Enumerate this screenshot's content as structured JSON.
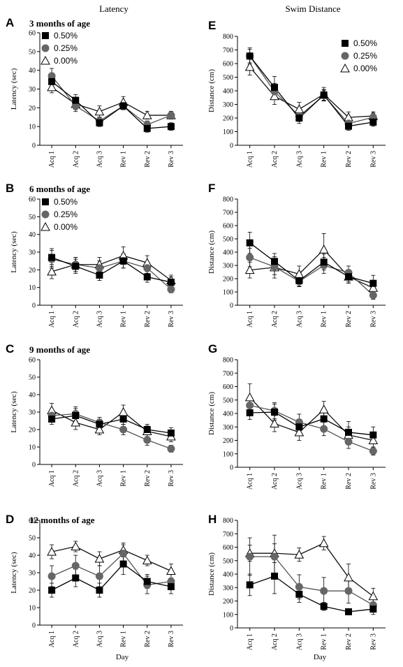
{
  "column_titles": [
    "Latency",
    "Swim Distance"
  ],
  "day_label": "Day",
  "chart_data": [
    {
      "type": "line",
      "panel": "A",
      "subtitle": "3 months of age",
      "ylabel": "Latency (sec)",
      "ylim": [
        0,
        60
      ],
      "yticks": [
        0,
        10,
        20,
        30,
        40,
        50,
        60
      ],
      "categories": [
        "Acq 1",
        "Acq 2",
        "Acq 3",
        "Rev 1",
        "Rev 2",
        "Rev 3"
      ],
      "legend": true,
      "legend_position": "top-left",
      "series": [
        {
          "name": "0.50%",
          "marker": "square",
          "values": [
            34,
            24,
            12,
            21,
            9,
            10
          ],
          "err": [
            3,
            3,
            2,
            2,
            2,
            2
          ]
        },
        {
          "name": "0.25%",
          "marker": "circle",
          "values": [
            37,
            21,
            13,
            21,
            11,
            16
          ],
          "err": [
            4,
            3,
            2,
            2,
            2,
            2
          ]
        },
        {
          "name": "0.00%",
          "marker": "triangle",
          "values": [
            31,
            22,
            18,
            23,
            16,
            16
          ],
          "err": [
            3,
            3,
            3,
            3,
            2,
            2
          ]
        }
      ]
    },
    {
      "type": "line",
      "panel": "E",
      "subtitle": "",
      "ylabel": "Distance (cm)",
      "ylim": [
        0,
        800
      ],
      "yticks": [
        0,
        100,
        200,
        300,
        400,
        500,
        600,
        700,
        800
      ],
      "categories": [
        "Acq 1",
        "Acq 2",
        "Acq 3",
        "Rev 1",
        "Rev 2",
        "Rev 3"
      ],
      "legend": true,
      "legend_position": "top-right",
      "series": [
        {
          "name": "0.50%",
          "marker": "square",
          "values": [
            655,
            425,
            200,
            370,
            140,
            170
          ],
          "err": [
            50,
            80,
            40,
            40,
            30,
            30
          ]
        },
        {
          "name": "0.25%",
          "marker": "circle",
          "values": [
            655,
            395,
            215,
            365,
            160,
            205
          ],
          "err": [
            60,
            60,
            40,
            40,
            30,
            30
          ]
        },
        {
          "name": "0.00%",
          "marker": "triangle",
          "values": [
            575,
            360,
            265,
            375,
            205,
            215
          ],
          "err": [
            60,
            60,
            50,
            50,
            40,
            30
          ]
        }
      ]
    },
    {
      "type": "line",
      "panel": "B",
      "subtitle": "6 months of age",
      "ylabel": "Latency (sec)",
      "ylim": [
        0,
        60
      ],
      "yticks": [
        0,
        10,
        20,
        30,
        40,
        50,
        60
      ],
      "categories": [
        "Acq 1",
        "Acq 2",
        "Acq 3",
        "Rev 1",
        "Rev 2",
        "Rev 3"
      ],
      "legend": true,
      "legend_position": "top-left",
      "series": [
        {
          "name": "0.50%",
          "marker": "square",
          "values": [
            27,
            22,
            17,
            25,
            16,
            13
          ],
          "err": [
            5,
            4,
            3,
            4,
            3,
            3
          ]
        },
        {
          "name": "0.25%",
          "marker": "circle",
          "values": [
            26,
            23,
            21,
            25,
            21,
            9
          ],
          "err": [
            5,
            4,
            4,
            4,
            3,
            2
          ]
        },
        {
          "name": "0.00%",
          "marker": "triangle",
          "values": [
            19,
            23,
            23,
            28,
            24,
            14
          ],
          "err": [
            4,
            4,
            4,
            5,
            4,
            3
          ]
        }
      ]
    },
    {
      "type": "line",
      "panel": "F",
      "subtitle": "",
      "ylabel": "Distance (cm)",
      "ylim": [
        0,
        800
      ],
      "yticks": [
        0,
        100,
        200,
        300,
        400,
        500,
        600,
        700,
        800
      ],
      "categories": [
        "Acq 1",
        "Acq 2",
        "Acq 3",
        "Rev 1",
        "Rev 2",
        "Rev 3"
      ],
      "legend": false,
      "legend_position": "",
      "series": [
        {
          "name": "0.50%",
          "marker": "square",
          "values": [
            470,
            330,
            185,
            325,
            215,
            165
          ],
          "err": [
            80,
            60,
            40,
            60,
            40,
            60
          ]
        },
        {
          "name": "0.25%",
          "marker": "circle",
          "values": [
            360,
            290,
            180,
            300,
            245,
            75
          ],
          "err": [
            70,
            60,
            40,
            60,
            50,
            30
          ]
        },
        {
          "name": "0.00%",
          "marker": "triangle",
          "values": [
            265,
            285,
            235,
            420,
            215,
            130
          ],
          "err": [
            60,
            80,
            60,
            120,
            50,
            40
          ]
        }
      ]
    },
    {
      "type": "line",
      "panel": "C",
      "subtitle": "9 months of age",
      "ylabel": "Latency (sec)",
      "ylim": [
        0,
        60
      ],
      "yticks": [
        0,
        10,
        20,
        30,
        40,
        50,
        60
      ],
      "categories": [
        "Acq 1",
        "Acq 2",
        "Acq 3",
        "Rev 1",
        "Rev 2",
        "Rev 3"
      ],
      "legend": false,
      "legend_position": "",
      "series": [
        {
          "name": "0.50%",
          "marker": "square",
          "values": [
            26,
            28,
            23,
            26,
            20,
            18
          ],
          "err": [
            3,
            4,
            3,
            3,
            3,
            3
          ]
        },
        {
          "name": "0.25%",
          "marker": "circle",
          "values": [
            28,
            29,
            24,
            20,
            14,
            9
          ],
          "err": [
            3,
            4,
            3,
            3,
            3,
            2
          ]
        },
        {
          "name": "0.00%",
          "marker": "triangle",
          "values": [
            31,
            24,
            20,
            30,
            19,
            16
          ],
          "err": [
            4,
            4,
            3,
            4,
            3,
            3
          ]
        }
      ]
    },
    {
      "type": "line",
      "panel": "G",
      "subtitle": "",
      "ylabel": "Distance (cm)",
      "ylim": [
        0,
        800
      ],
      "yticks": [
        0,
        100,
        200,
        300,
        400,
        500,
        600,
        700,
        800
      ],
      "categories": [
        "Acq 1",
        "Acq 2",
        "Acq 3",
        "Rev 1",
        "Rev 2",
        "Rev 3"
      ],
      "legend": false,
      "legend_position": "",
      "series": [
        {
          "name": "0.50%",
          "marker": "square",
          "values": [
            405,
            410,
            300,
            360,
            260,
            240
          ],
          "err": [
            50,
            60,
            50,
            60,
            80,
            60
          ]
        },
        {
          "name": "0.25%",
          "marker": "circle",
          "values": [
            460,
            420,
            335,
            285,
            190,
            120
          ],
          "err": [
            60,
            60,
            60,
            50,
            50,
            30
          ]
        },
        {
          "name": "0.00%",
          "marker": "triangle",
          "values": [
            520,
            325,
            260,
            430,
            240,
            200
          ],
          "err": [
            100,
            60,
            60,
            60,
            60,
            50
          ]
        }
      ]
    },
    {
      "type": "line",
      "panel": "D",
      "subtitle": "12 months of age",
      "ylabel": "Latency (sec)",
      "ylim": [
        0,
        60
      ],
      "yticks": [
        0,
        10,
        20,
        30,
        40,
        50,
        60
      ],
      "categories": [
        "Acq 1",
        "Acq 2",
        "Acq 3",
        "Rev 1",
        "Rev 2",
        "Rev 3"
      ],
      "legend": false,
      "legend_position": "",
      "series": [
        {
          "name": "0.50%",
          "marker": "square",
          "values": [
            20,
            27,
            20,
            35,
            25,
            22
          ],
          "err": [
            4,
            5,
            4,
            6,
            4,
            4
          ]
        },
        {
          "name": "0.25%",
          "marker": "circle",
          "values": [
            28,
            34,
            28,
            41,
            23,
            25
          ],
          "err": [
            6,
            6,
            6,
            5,
            5,
            4
          ]
        },
        {
          "name": "0.00%",
          "marker": "triangle",
          "values": [
            42,
            45,
            38,
            43,
            37,
            31
          ],
          "err": [
            4,
            3,
            4,
            4,
            3,
            4
          ]
        }
      ]
    },
    {
      "type": "line",
      "panel": "H",
      "subtitle": "",
      "ylabel": "Distance (cm)",
      "ylim": [
        0,
        800
      ],
      "yticks": [
        0,
        100,
        200,
        300,
        400,
        500,
        600,
        700,
        800
      ],
      "categories": [
        "Acq 1",
        "Acq 2",
        "Acq 3",
        "Rev 1",
        "Rev 2",
        "Rev 3"
      ],
      "legend": false,
      "legend_position": "",
      "series": [
        {
          "name": "0.50%",
          "marker": "square",
          "values": [
            320,
            385,
            250,
            160,
            120,
            140
          ],
          "err": [
            80,
            130,
            60,
            30,
            20,
            40
          ]
        },
        {
          "name": "0.25%",
          "marker": "circle",
          "values": [
            530,
            530,
            305,
            275,
            275,
            170
          ],
          "err": [
            140,
            160,
            90,
            100,
            90,
            50
          ]
        },
        {
          "name": "0.00%",
          "marker": "triangle",
          "values": [
            555,
            555,
            545,
            630,
            375,
            235
          ],
          "err": [
            60,
            70,
            50,
            50,
            100,
            60
          ]
        }
      ]
    }
  ]
}
